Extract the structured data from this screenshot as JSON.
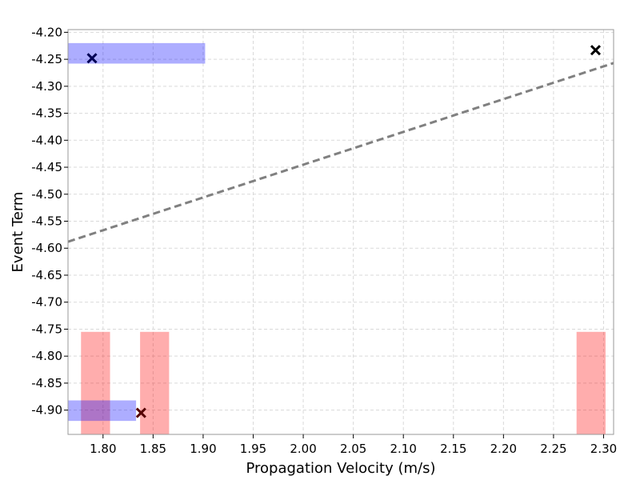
{
  "chart_data": {
    "type": "scatter",
    "xlabel": "Propagation Velocity (m/s)",
    "ylabel": "Event Term",
    "xlim": [
      1.765,
      2.31
    ],
    "ylim": [
      -4.945,
      -4.195
    ],
    "x_ticks": [
      1.8,
      1.85,
      1.9,
      1.95,
      2.0,
      2.05,
      2.1,
      2.15,
      2.2,
      2.25,
      2.3
    ],
    "x_tick_labels": [
      "1.80",
      "1.85",
      "1.90",
      "1.95",
      "2.00",
      "2.05",
      "2.10",
      "2.15",
      "2.20",
      "2.25",
      "2.30"
    ],
    "y_ticks": [
      -4.2,
      -4.25,
      -4.3,
      -4.35,
      -4.4,
      -4.45,
      -4.5,
      -4.55,
      -4.6,
      -4.65,
      -4.7,
      -4.75,
      -4.8,
      -4.85,
      -4.9
    ],
    "y_tick_labels": [
      "-4.20",
      "-4.25",
      "-4.30",
      "-4.35",
      "-4.40",
      "-4.45",
      "-4.50",
      "-4.55",
      "-4.60",
      "-4.65",
      "-4.70",
      "-4.75",
      "-4.80",
      "-4.85",
      "-4.90"
    ],
    "grid": true,
    "points": [
      {
        "x": 1.789,
        "y": -4.248
      },
      {
        "x": 1.838,
        "y": -4.905
      },
      {
        "x": 2.292,
        "y": -4.233
      }
    ],
    "trend_line": {
      "x": [
        1.765,
        2.31
      ],
      "y": [
        -4.588,
        -4.257
      ],
      "style": "dashed",
      "color": "#808080"
    },
    "horizontal_bands": [
      {
        "x0": 1.765,
        "x1": 1.902,
        "y0": -4.258,
        "y1": -4.22,
        "color": "#0000ff",
        "opacity": 0.32
      },
      {
        "x0": 1.765,
        "x1": 1.833,
        "y0": -4.92,
        "y1": -4.882,
        "color": "#0000ff",
        "opacity": 0.32
      }
    ],
    "vertical_bands": [
      {
        "x0": 1.778,
        "x1": 1.807,
        "y0": -4.945,
        "y1": -4.755,
        "color": "#ff0000",
        "opacity": 0.32
      },
      {
        "x0": 1.837,
        "x1": 1.866,
        "y0": -4.945,
        "y1": -4.755,
        "color": "#ff0000",
        "opacity": 0.32
      },
      {
        "x0": 2.273,
        "x1": 2.302,
        "y0": -4.945,
        "y1": -4.755,
        "color": "#ff0000",
        "opacity": 0.32
      }
    ],
    "marker_colors": [
      "#000055",
      "#550000",
      "#000000"
    ]
  }
}
